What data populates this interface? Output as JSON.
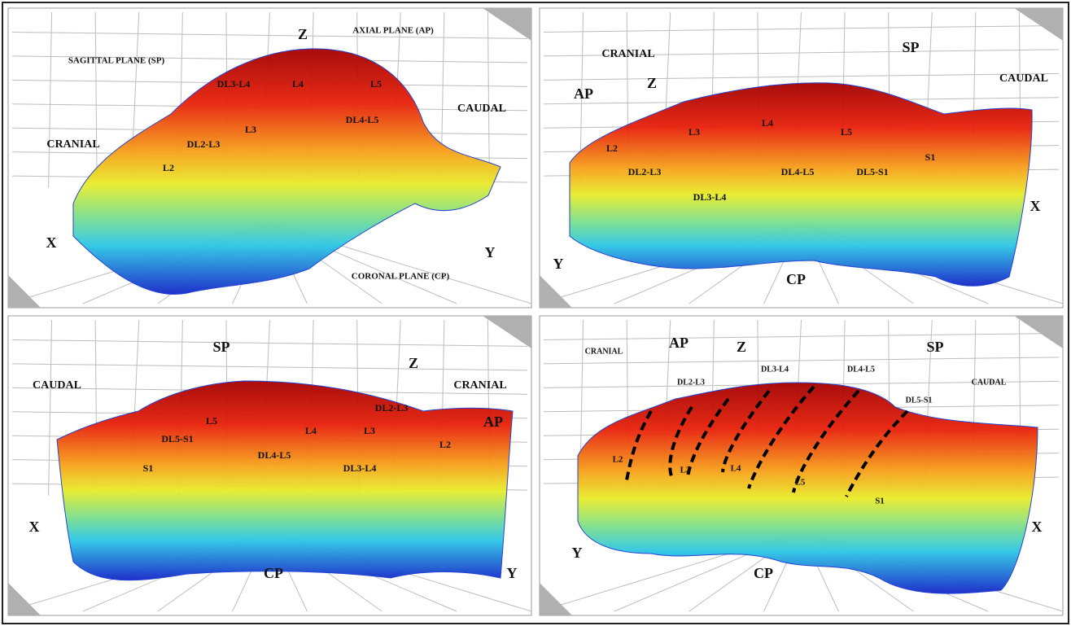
{
  "panels": [
    {
      "labels": [
        "Z",
        "AXIAL PLANE (AP)",
        "SAGITTAL PLANE (SP)",
        "DL3-L4",
        "L4",
        "L5",
        "CAUDAL",
        "CRANIAL",
        "DL2-L3",
        "L3",
        "DL4-L5",
        "L2",
        "X",
        "Y",
        "CORONAL PLANE (CP)"
      ]
    },
    {
      "labels": [
        "CRANIAL",
        "SP",
        "CAUDAL",
        "AP",
        "Z",
        "L3",
        "L4",
        "L5",
        "L2",
        "S1",
        "DL2-L3",
        "DL4-L5",
        "DL5-S1",
        "DL3-L4",
        "X",
        "Y",
        "CP"
      ]
    },
    {
      "labels": [
        "SP",
        "Z",
        "CAUDAL",
        "CRANIAL",
        "DL2-L3",
        "AP",
        "L5",
        "DL5-S1",
        "L4",
        "L3",
        "L2",
        "DL4-L5",
        "S1",
        "DL3-L4",
        "X",
        "CP",
        "Y"
      ]
    },
    {
      "labels": [
        "CRANIAL",
        "AP",
        "Z",
        "SP",
        "DL3-L4",
        "DL4-L5",
        "DL2-L3",
        "CAUDAL",
        "DL5-S1",
        "L2",
        "L3",
        "L4",
        "L5",
        "S1",
        "Y",
        "CP",
        "X"
      ]
    }
  ]
}
